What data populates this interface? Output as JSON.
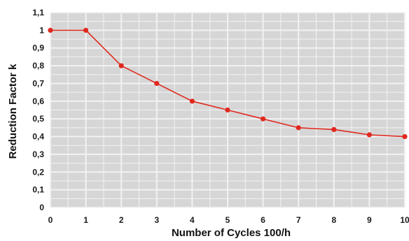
{
  "chart_data": {
    "type": "line",
    "title": "",
    "xlabel": "Number of Cycles 100/h",
    "ylabel": "Reduction Factor k",
    "xlim": [
      0,
      10
    ],
    "ylim": [
      0,
      1.1
    ],
    "grid": true,
    "x_tick_labels": [
      "0",
      "1",
      "2",
      "3",
      "4",
      "5",
      "6",
      "7",
      "8",
      "9",
      "10"
    ],
    "y_tick_labels": [
      "0",
      "0,1",
      "0,2",
      "0,3",
      "0,4",
      "0,5",
      "0,6",
      "0,7",
      "0,8",
      "0,9",
      "1",
      "1,1"
    ],
    "series": [
      {
        "x": [
          0,
          1,
          2,
          3,
          4,
          5,
          6,
          7,
          8,
          9,
          10
        ],
        "y": [
          1.0,
          1.0,
          0.8,
          0.7,
          0.6,
          0.55,
          0.5,
          0.45,
          0.44,
          0.41,
          0.4
        ],
        "color": "#e0281e"
      }
    ],
    "colors": {
      "plot_background": "#d6d6d6",
      "grid": "#f2f2f2",
      "line": "#e0281e",
      "marker": "#e0281e"
    }
  }
}
